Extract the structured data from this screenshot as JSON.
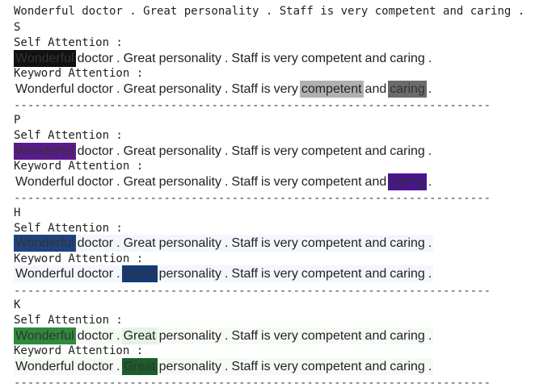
{
  "header": {
    "sentence": "Wonderful doctor . Great personality . Staff is very competent and caring ."
  },
  "labels": {
    "self": "Self Attention :",
    "keyword": "Keyword Attention :",
    "separator": "--------------------------------------------------------------------------------"
  },
  "tokens": [
    "Wonderful",
    "doctor",
    ".",
    "Great",
    "personality",
    ".",
    "Staff",
    "is",
    "very",
    "competent",
    "and",
    "caring",
    "."
  ],
  "blocks": [
    {
      "letter": "S",
      "self_colors": [
        "#111111",
        "#ffffff",
        "#ffffff",
        "#ffffff",
        "#ffffff",
        "#ffffff",
        "#ffffff",
        "#ffffff",
        "#ffffff",
        "#ffffff",
        "#ffffff",
        "#ffffff",
        "#ffffff"
      ],
      "keyword_colors": [
        "#ffffff",
        "#ffffff",
        "#ffffff",
        "#ffffff",
        "#ffffff",
        "#ffffff",
        "#ffffff",
        "#ffffff",
        "#ffffff",
        "#b0b0b0",
        "#ffffff",
        "#6b6b6b",
        "#ffffff"
      ]
    },
    {
      "letter": "P",
      "self_colors": [
        "#5a1a8c",
        "#ffffff",
        "#ffffff",
        "#ffffff",
        "#ffffff",
        "#ffffff",
        "#ffffff",
        "#ffffff",
        "#ffffff",
        "#ffffff",
        "#ffffff",
        "#ffffff",
        "#ffffff"
      ],
      "keyword_colors": [
        "#ffffff",
        "#ffffff",
        "#ffffff",
        "#ffffff",
        "#ffffff",
        "#ffffff",
        "#ffffff",
        "#ffffff",
        "#ffffff",
        "#ffffff",
        "#ffffff",
        "#4a1490",
        "#ffffff"
      ]
    },
    {
      "letter": "H",
      "self_colors": [
        "#1e4480",
        "#f3f7fc",
        "#f3f7fc",
        "#f3f7fc",
        "#f3f7fc",
        "#f3f7fc",
        "#f3f7fc",
        "#f3f7fc",
        "#f3f7fc",
        "#f3f7fc",
        "#f3f7fc",
        "#f3f7fc",
        "#f3f7fc"
      ],
      "keyword_colors": [
        "#f3f7fc",
        "#f3f7fc",
        "#f3f7fc",
        "#153a78",
        "#f3f7fc",
        "#f3f7fc",
        "#f3f7fc",
        "#f3f7fc",
        "#f3f7fc",
        "#f3f7fc",
        "#f3f7fc",
        "#f3f7fc",
        "#f3f7fc"
      ]
    },
    {
      "letter": "K",
      "self_colors": [
        "#2e8a3c",
        "#f5fbf4",
        "#f5fbf4",
        "#e4f4e2",
        "#f5fbf4",
        "#f5fbf4",
        "#f5fbf4",
        "#f5fbf4",
        "#f5fbf4",
        "#f5fbf4",
        "#f5fbf4",
        "#f5fbf4",
        "#f5fbf4"
      ],
      "keyword_colors": [
        "#f5fbf4",
        "#f5fbf4",
        "#f5fbf4",
        "#1c5e2a",
        "#f5fbf4",
        "#f5fbf4",
        "#f5fbf4",
        "#f5fbf4",
        "#f5fbf4",
        "#f5fbf4",
        "#f5fbf4",
        "#f5fbf4",
        "#f5fbf4"
      ]
    }
  ]
}
